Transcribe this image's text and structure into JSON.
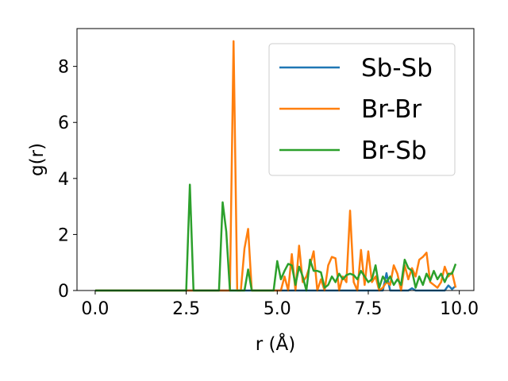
{
  "chart_data": {
    "type": "line",
    "title": "",
    "xlabel": "r (Å)",
    "ylabel": "g(r)",
    "xlim": [
      -0.5,
      10.4
    ],
    "ylim": [
      0,
      9.35
    ],
    "xticks": [
      0.0,
      2.5,
      5.0,
      7.5,
      10.0
    ],
    "xtick_labels": [
      "0.0",
      "2.5",
      "5.0",
      "7.5",
      "10.0"
    ],
    "yticks": [
      0,
      2,
      4,
      6,
      8
    ],
    "ytick_labels": [
      "0",
      "2",
      "4",
      "6",
      "8"
    ],
    "grid": false,
    "legend_position": "top-right",
    "x": [
      0.0,
      0.1,
      0.2,
      0.3,
      0.4,
      0.5,
      0.6,
      0.7,
      0.8,
      0.9,
      1.0,
      1.1,
      1.2,
      1.3,
      1.4,
      1.5,
      1.6,
      1.7,
      1.8,
      1.9,
      2.0,
      2.1,
      2.2,
      2.3,
      2.4,
      2.5,
      2.6,
      2.7,
      2.8,
      2.9,
      3.0,
      3.1,
      3.2,
      3.3,
      3.4,
      3.5,
      3.6,
      3.7,
      3.8,
      3.9,
      4.0,
      4.1,
      4.2,
      4.3,
      4.4,
      4.5,
      4.6,
      4.7,
      4.8,
      4.9,
      5.0,
      5.1,
      5.2,
      5.3,
      5.4,
      5.5,
      5.6,
      5.7,
      5.8,
      5.9,
      6.0,
      6.1,
      6.2,
      6.3,
      6.4,
      6.5,
      6.6,
      6.7,
      6.8,
      6.9,
      7.0,
      7.1,
      7.2,
      7.3,
      7.4,
      7.5,
      7.6,
      7.7,
      7.8,
      7.9,
      8.0,
      8.1,
      8.2,
      8.3,
      8.4,
      8.5,
      8.6,
      8.7,
      8.8,
      8.9,
      9.0,
      9.1,
      9.2,
      9.3,
      9.4,
      9.5,
      9.6,
      9.7,
      9.8,
      9.9
    ],
    "series": [
      {
        "name": "Sb-Sb",
        "color": "#1f77b4",
        "values": [
          0,
          0,
          0,
          0,
          0,
          0,
          0,
          0,
          0,
          0,
          0,
          0,
          0,
          0,
          0,
          0,
          0,
          0,
          0,
          0,
          0,
          0,
          0,
          0,
          0,
          0,
          0,
          0,
          0,
          0,
          0,
          0,
          0,
          0,
          0,
          0,
          0,
          0,
          0,
          0,
          0,
          0,
          0,
          0,
          0,
          0,
          0,
          0,
          0,
          0,
          0,
          0,
          0,
          0,
          0,
          0,
          0,
          0,
          0,
          0,
          0,
          0,
          0,
          0,
          0,
          0,
          0,
          0,
          0,
          0,
          0,
          0,
          0,
          0,
          0,
          0,
          0,
          0,
          0,
          0,
          0.62,
          0,
          0,
          0,
          0,
          0,
          0,
          0.08,
          0,
          0,
          0,
          0,
          0,
          0,
          0,
          0,
          0,
          0.18,
          0.05,
          0.16
        ]
      },
      {
        "name": "Br-Br",
        "color": "#ff7f0e",
        "values": [
          0,
          0,
          0,
          0,
          0,
          0,
          0,
          0,
          0,
          0,
          0,
          0,
          0,
          0,
          0,
          0,
          0,
          0,
          0,
          0,
          0,
          0,
          0,
          0,
          0,
          0,
          0,
          0,
          0,
          0,
          0,
          0,
          0,
          0,
          0,
          0,
          0,
          0,
          8.9,
          0,
          0,
          1.5,
          2.2,
          0,
          0,
          0,
          0,
          0,
          0,
          0,
          0,
          0,
          0.5,
          0,
          1.3,
          0,
          1.6,
          0.3,
          0.5,
          0.9,
          1.4,
          0,
          0.4,
          0,
          0.9,
          1.2,
          1.15,
          0,
          0.5,
          0.3,
          2.85,
          0.3,
          0,
          1.45,
          0.2,
          1.4,
          0.3,
          0.5,
          0,
          0.1,
          0.3,
          0.2,
          0.9,
          0.6,
          0,
          0.9,
          0.4,
          0.8,
          0.5,
          1.1,
          1.2,
          1.35,
          0.3,
          0.2,
          0.1,
          0.3,
          0.85,
          0.5,
          0.65,
          0.1
        ]
      },
      {
        "name": "Br-Sb",
        "color": "#2ca02c",
        "values": [
          0,
          0,
          0,
          0,
          0,
          0,
          0,
          0,
          0,
          0,
          0,
          0,
          0,
          0,
          0,
          0,
          0,
          0,
          0,
          0,
          0,
          0,
          0,
          0,
          0,
          0,
          3.78,
          0,
          0,
          0,
          0,
          0,
          0,
          0,
          0,
          3.15,
          2.1,
          0,
          0,
          0,
          0,
          0,
          0.75,
          0,
          0,
          0,
          0,
          0,
          0,
          0,
          1.05,
          0.4,
          0.7,
          0.95,
          0.9,
          0.2,
          0.85,
          0.5,
          0,
          1.1,
          0.7,
          0.7,
          0.65,
          0.1,
          0.2,
          0.5,
          0.3,
          0.6,
          0.4,
          0.55,
          0.6,
          0.55,
          0.4,
          0.7,
          0.5,
          0.3,
          0.4,
          0.9,
          0.1,
          0.5,
          0.3,
          0.5,
          0.2,
          0.4,
          0.2,
          1.1,
          0.8,
          0.7,
          0.1,
          0.5,
          0.2,
          0.6,
          0.35,
          0.7,
          0.4,
          0.6,
          0.3,
          0.6,
          0.6,
          0.95
        ]
      }
    ]
  }
}
